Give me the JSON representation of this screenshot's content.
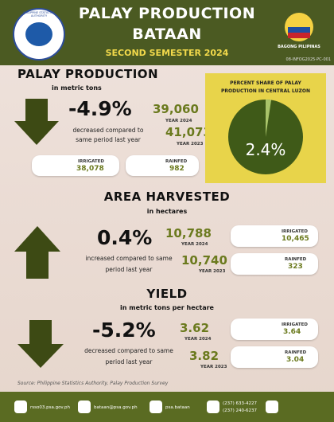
{
  "header": {
    "title": "PALAY PRODUCTION",
    "location": "BATAAN",
    "period": "SECOND SEMESTER 2024",
    "agency": "PHILIPPINE STATISTICS AUTHORITY",
    "brand": "BAGONG PILIPINAS",
    "code": "08-INFOG2025-PC-001"
  },
  "production": {
    "heading": "PALAY PRODUCTION",
    "unit": "in metric tons",
    "change": "-4.9%",
    "note": "decreased compared to same period last year",
    "current": {
      "value": "39,060",
      "label": "YEAR 2024"
    },
    "previous": {
      "value": "41,073",
      "label": "YEAR 2023"
    },
    "irrigated": {
      "label": "IRRIGATED",
      "value": "38,078"
    },
    "rainfed": {
      "label": "RAINFED",
      "value": "982"
    }
  },
  "share": {
    "type": "pie",
    "title": "PERCENT SHARE OF PALAY PRODUCTION IN CENTRAL LUZON",
    "value": 2.4,
    "value_label": "2.4%",
    "color": "#a9c46a",
    "rest_color": "#3f5a18"
  },
  "area": {
    "heading": "AREA HARVESTED",
    "unit": "in hectares",
    "change": "0.4%",
    "note": "increased compared to same period last year",
    "current": {
      "value": "10,788",
      "label": "YEAR 2024"
    },
    "previous": {
      "value": "10,740",
      "label": "YEAR 2023"
    },
    "irrigated": {
      "label": "IRRIGATED",
      "value": "10,465"
    },
    "rainfed": {
      "label": "RAINFED",
      "value": "323"
    }
  },
  "yield": {
    "heading": "YIELD",
    "unit": "in metric tons per hectare",
    "change": "-5.2%",
    "note": "decreased compared to same period last year",
    "current": {
      "value": "3.62",
      "label": "YEAR 2024"
    },
    "previous": {
      "value": "3.82",
      "label": "YEAR 2023"
    },
    "irrigated": {
      "label": "IRRIGATED",
      "value": "3.64"
    },
    "rainfed": {
      "label": "RAINFED",
      "value": "3.04"
    }
  },
  "source": "Source: Philippine Statistics Authority, Palay Production Survey",
  "footer": {
    "website": "rsso03.psa.gov.ph",
    "email": "bataan@psa.gov.ph",
    "facebook": "psa.bataan",
    "phone1": "(237) 633-4227",
    "phone2": "(237) 240-6237"
  }
}
